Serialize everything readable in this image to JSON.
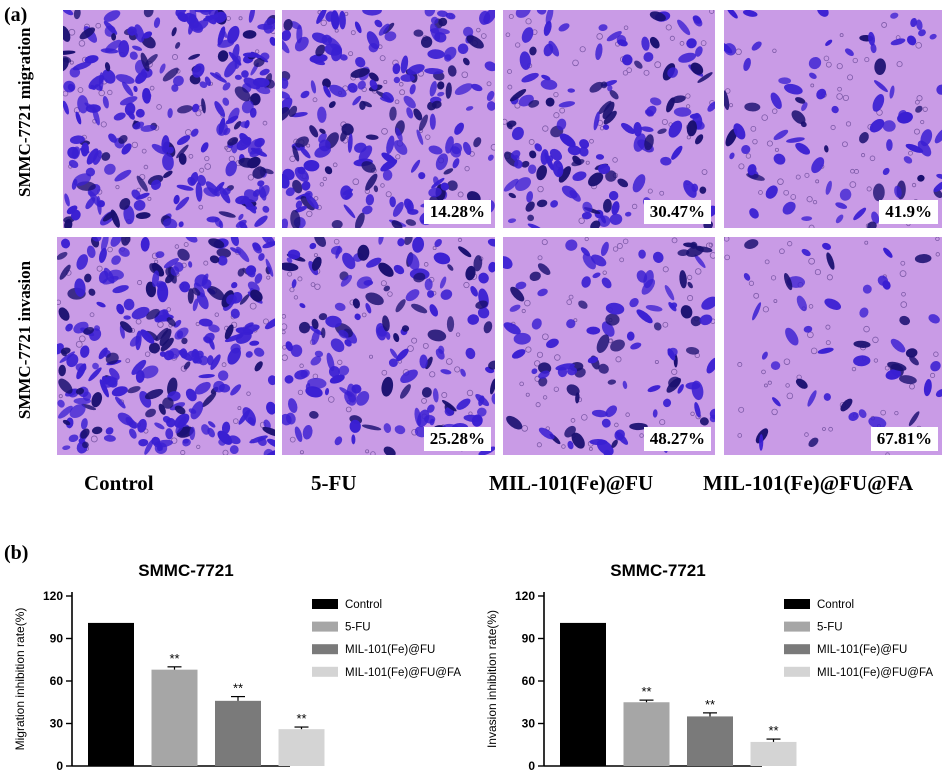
{
  "panel_a": {
    "label": "(a)",
    "row_labels": [
      "SMMC-7721 migration",
      "SMMC-7721 invasion"
    ],
    "column_labels": [
      "Control",
      "5-FU",
      "MIL-101(Fe)@FU",
      "MIL-101(Fe)@FU@FA"
    ],
    "migration_percentages": [
      "",
      "14.28%",
      "30.47%",
      "41.9%"
    ],
    "invasion_percentages": [
      "",
      "25.28%",
      "48.27%",
      "67.81%"
    ],
    "colors": {
      "background": "#c99be6",
      "stain": "#3a1fd2",
      "stain_dark": "#1a1070"
    }
  },
  "panel_b": {
    "label": "(b)"
  },
  "chart_data": [
    {
      "type": "bar",
      "title": "SMMC-7721",
      "ylabel": "Migration inhibition rate(%)",
      "xlabel": "",
      "ylim": [
        0,
        120
      ],
      "yticks": [
        0,
        30,
        60,
        90,
        120
      ],
      "categories": [
        "Control",
        "5-FU",
        "MIL-101(Fe)@FU",
        "MIL-101(Fe)@FU@FA"
      ],
      "values": [
        101,
        68,
        46,
        26
      ],
      "errors": [
        0,
        2,
        3,
        1.5
      ],
      "significance": [
        "",
        "**",
        "**",
        "**"
      ],
      "colors": [
        "#000000",
        "#a6a6a6",
        "#7a7a7a",
        "#d4d4d4"
      ],
      "legend": [
        "Control",
        "5-FU",
        "MIL-101(Fe)@FU",
        "MIL-101(Fe)@FU@FA"
      ],
      "legend_position": "right"
    },
    {
      "type": "bar",
      "title": "SMMC-7721",
      "ylabel": "Invasion inhibition rate(%)",
      "xlabel": "",
      "ylim": [
        0,
        120
      ],
      "yticks": [
        0,
        30,
        60,
        90,
        120
      ],
      "categories": [
        "Control",
        "5-FU",
        "MIL-101(Fe)@FU",
        "MIL-101(Fe)@FU@FA"
      ],
      "values": [
        101,
        45,
        35,
        17
      ],
      "errors": [
        0,
        1.5,
        2.5,
        2
      ],
      "significance": [
        "",
        "**",
        "**",
        "**"
      ],
      "colors": [
        "#000000",
        "#a6a6a6",
        "#7a7a7a",
        "#d4d4d4"
      ],
      "legend": [
        "Control",
        "5-FU",
        "MIL-101(Fe)@FU",
        "MIL-101(Fe)@FU@FA"
      ],
      "legend_position": "right"
    }
  ]
}
